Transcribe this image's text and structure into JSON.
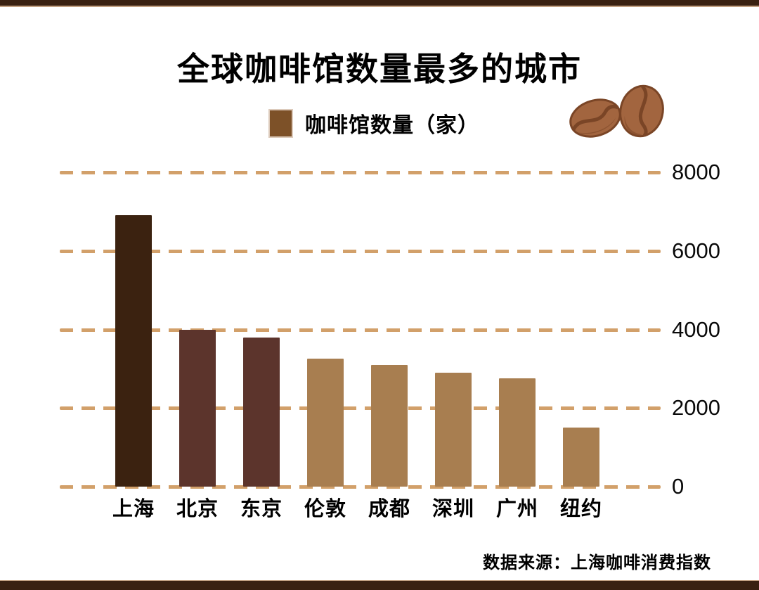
{
  "frame": {
    "border_color": "#3a2112",
    "accent_line_color": "#c3a183"
  },
  "chart_data": {
    "type": "bar",
    "title": "全球咖啡馆数量最多的城市",
    "legend": {
      "label": "咖啡馆数量（家）",
      "swatch_color": "#7d5128",
      "position": "top-center"
    },
    "categories": [
      "上海",
      "北京",
      "东京",
      "伦敦",
      "成都",
      "深圳",
      "广州",
      "纽约"
    ],
    "values": [
      6900,
      4000,
      3800,
      3250,
      3100,
      2900,
      2750,
      1500
    ],
    "bar_colors": [
      "#3b2210",
      "#5c342c",
      "#5c342c",
      "#a87e50",
      "#a87e50",
      "#a87e50",
      "#a87e50",
      "#a87e50"
    ],
    "xlabel": "",
    "ylabel": "",
    "ylim": [
      0,
      8000
    ],
    "yticks": [
      8000,
      6000,
      4000,
      2000,
      0
    ],
    "y_axis_side": "right",
    "grid": "horizontal-dashed",
    "gridline_color": "#d2a06a",
    "source": "数据来源：上海咖啡消费指数"
  },
  "icons": {
    "coffee_beans_icon": {
      "name": "coffee-beans-icon",
      "body_color": "#a2653f",
      "crease_color": "#7a4526"
    }
  }
}
